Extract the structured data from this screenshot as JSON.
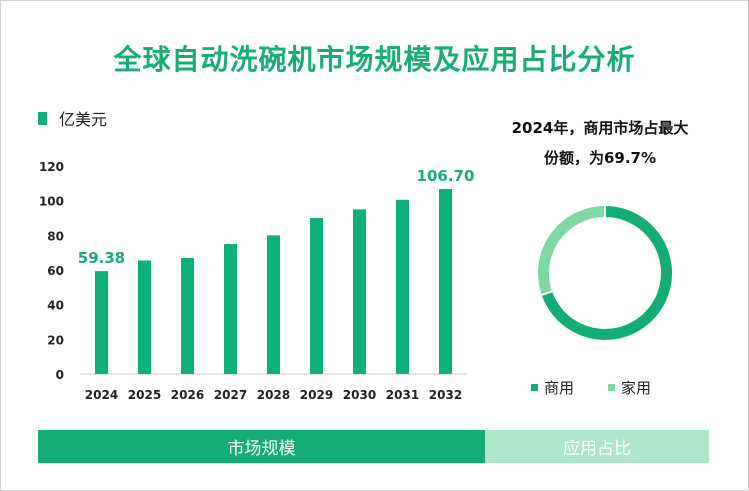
{
  "title": "全球自动洗碗机市场规模及应用占比分析",
  "legend": {
    "unit_label": "亿美元",
    "color": "#0eb07a"
  },
  "colors": {
    "accent": "#17ad73",
    "bar": "#0eb07a",
    "commercial": "#14ac75",
    "household": "#7fd7a4"
  },
  "chart_data": [
    {
      "type": "bar",
      "categories": [
        "2024",
        "2025",
        "2026",
        "2027",
        "2028",
        "2029",
        "2030",
        "2031",
        "2032"
      ],
      "values": [
        59.38,
        65.5,
        67.0,
        75.0,
        80.0,
        90.0,
        95.0,
        100.5,
        106.7
      ],
      "data_labels": [
        {
          "index": 0,
          "text": "59.38"
        },
        {
          "index": 8,
          "text": "106.70"
        }
      ],
      "ylabel": "亿美元",
      "ylim": [
        0,
        120
      ],
      "yticks": [
        0,
        20,
        40,
        60,
        80,
        100,
        120
      ],
      "grid": false
    },
    {
      "type": "pie",
      "title": "2024年，商用市场占最大份额，为69.7%",
      "donut": true,
      "slices": [
        {
          "label": "商用",
          "value": 69.7,
          "color": "#14ac75"
        },
        {
          "label": "家用",
          "value": 30.3,
          "color": "#7fd7a4"
        }
      ],
      "legend_position": "bottom"
    }
  ],
  "pie": {
    "title_line1": "2024年，商用市场占最大",
    "title_line2": "份额，为69.7%"
  },
  "footer": {
    "left_tab": "市场规模",
    "right_tab": "应用占比"
  }
}
